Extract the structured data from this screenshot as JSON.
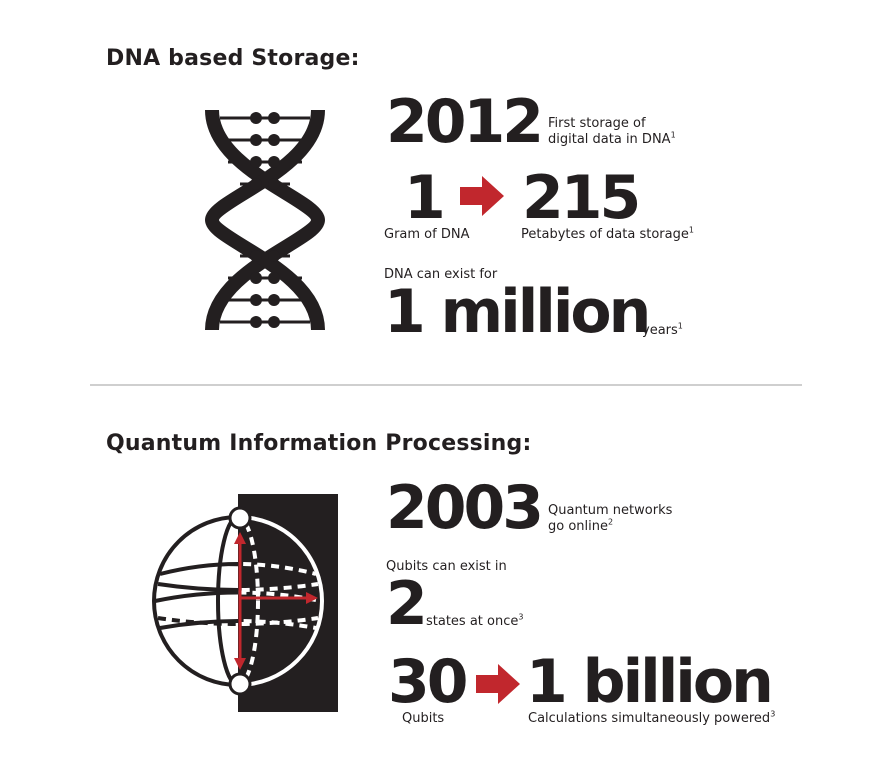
{
  "colors": {
    "ink": "#231f20",
    "accent": "#c1272d",
    "divider": "#cfcfcf"
  },
  "dna": {
    "heading": "DNA based Storage:",
    "icon": "dna-helix-icon",
    "stat1": {
      "value": "2012",
      "caption_line1": "First storage of",
      "caption_line2": "digital data in DNA",
      "footnote": "1"
    },
    "stat2": {
      "from_value": "1",
      "from_caption": "Gram of DNA",
      "arrow_icon": "right-arrow-icon",
      "to_value": "215",
      "to_caption": "Petabytes of data storage",
      "footnote": "1"
    },
    "stat3": {
      "prefix": "DNA can exist for",
      "value": "1 million",
      "unit": "years",
      "footnote": "1"
    }
  },
  "quantum": {
    "heading": "Quantum Information Processing:",
    "icon": "bloch-sphere-icon",
    "stat1": {
      "value": "2003",
      "caption_line1": "Quantum networks",
      "caption_line2": "go online",
      "footnote": "2"
    },
    "stat2": {
      "prefix": "Qubits can exist in",
      "value": "2",
      "caption": "states at once",
      "footnote": "3"
    },
    "stat3": {
      "from_value": "30",
      "from_caption": "Qubits",
      "arrow_icon": "right-arrow-icon",
      "to_value": "1 billion",
      "to_caption": "Calculations simultaneously powered",
      "footnote": "3"
    }
  }
}
